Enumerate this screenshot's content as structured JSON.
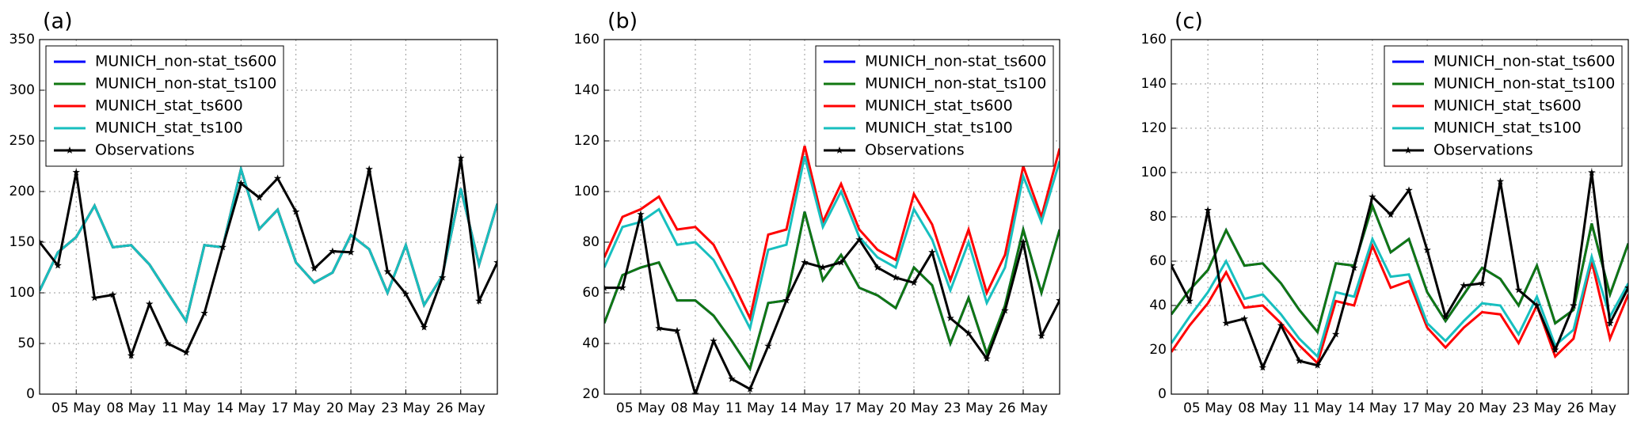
{
  "chart_data": [
    {
      "type": "line",
      "title": "(a)",
      "legend": "upper left",
      "grid": true,
      "x": [
        3,
        4,
        5,
        6,
        7,
        8,
        9,
        10,
        11,
        12,
        13,
        14,
        15,
        16,
        17,
        18,
        19,
        20,
        21,
        22,
        23,
        24,
        25,
        26,
        27,
        28
      ],
      "xlim": [
        3,
        28
      ],
      "xticks": [
        {
          "value": 5,
          "label": "05 May"
        },
        {
          "value": 8,
          "label": "08 May"
        },
        {
          "value": 11,
          "label": "11 May"
        },
        {
          "value": 14,
          "label": "14 May"
        },
        {
          "value": 17,
          "label": "17 May"
        },
        {
          "value": 20,
          "label": "20 May"
        },
        {
          "value": 23,
          "label": "23 May"
        },
        {
          "value": 26,
          "label": "26 May"
        }
      ],
      "ylim": [
        0,
        350
      ],
      "yticks": [
        0,
        50,
        100,
        150,
        200,
        250,
        300,
        350
      ],
      "series": [
        {
          "name": "MUNICH_non-stat_ts600",
          "color": "#0000ff",
          "values": [
            102,
            140,
            155,
            186,
            145,
            147,
            128,
            100,
            72,
            147,
            145,
            222,
            163,
            182,
            130,
            110,
            120,
            157,
            143,
            100,
            147,
            88,
            117,
            203,
            128,
            188
          ]
        },
        {
          "name": "MUNICH_non-stat_ts100",
          "color": "#117711",
          "values": [
            102,
            140,
            155,
            186,
            145,
            147,
            128,
            100,
            72,
            147,
            145,
            222,
            163,
            182,
            130,
            110,
            120,
            157,
            143,
            100,
            147,
            88,
            117,
            203,
            128,
            188
          ]
        },
        {
          "name": "MUNICH_stat_ts600",
          "color": "#ff0000",
          "values": [
            102,
            140,
            155,
            186,
            145,
            147,
            128,
            100,
            72,
            147,
            145,
            222,
            163,
            182,
            130,
            110,
            120,
            157,
            143,
            100,
            147,
            88,
            117,
            203,
            128,
            188
          ]
        },
        {
          "name": "MUNICH_stat_ts100",
          "color": "#17bfbf",
          "values": [
            102,
            140,
            155,
            186,
            145,
            147,
            128,
            100,
            72,
            147,
            145,
            222,
            163,
            182,
            130,
            110,
            120,
            157,
            143,
            100,
            147,
            88,
            117,
            203,
            128,
            188
          ]
        },
        {
          "name": "Observations",
          "color": "#000000",
          "marker": "star",
          "values": [
            150,
            127,
            219,
            95,
            98,
            38,
            89,
            50,
            41,
            80,
            145,
            208,
            194,
            213,
            180,
            124,
            141,
            140,
            222,
            121,
            99,
            66,
            115,
            233,
            92,
            130
          ]
        }
      ]
    },
    {
      "type": "line",
      "title": "(b)",
      "legend": "upper right",
      "grid": true,
      "x": [
        3,
        4,
        5,
        6,
        7,
        8,
        9,
        10,
        11,
        12,
        13,
        14,
        15,
        16,
        17,
        18,
        19,
        20,
        21,
        22,
        23,
        24,
        25,
        26,
        27,
        28
      ],
      "xlim": [
        3,
        28
      ],
      "xticks": [
        {
          "value": 5,
          "label": "05 May"
        },
        {
          "value": 8,
          "label": "08 May"
        },
        {
          "value": 11,
          "label": "11 May"
        },
        {
          "value": 14,
          "label": "14 May"
        },
        {
          "value": 17,
          "label": "17 May"
        },
        {
          "value": 20,
          "label": "20 May"
        },
        {
          "value": 23,
          "label": "23 May"
        },
        {
          "value": 26,
          "label": "26 May"
        }
      ],
      "ylim": [
        20,
        160
      ],
      "yticks": [
        20,
        40,
        60,
        80,
        100,
        120,
        140,
        160
      ],
      "series": [
        {
          "name": "MUNICH_non-stat_ts600",
          "color": "#0000ff",
          "values": [
            48,
            67,
            70,
            72,
            57,
            57,
            51,
            41,
            30,
            56,
            57,
            92,
            65,
            75,
            62,
            59,
            54,
            70,
            63,
            40,
            58,
            36,
            55,
            85,
            60,
            85
          ]
        },
        {
          "name": "MUNICH_non-stat_ts100",
          "color": "#117711",
          "values": [
            48,
            67,
            70,
            72,
            57,
            57,
            51,
            41,
            30,
            56,
            57,
            92,
            65,
            75,
            62,
            59,
            54,
            70,
            63,
            40,
            58,
            36,
            55,
            85,
            60,
            85
          ]
        },
        {
          "name": "MUNICH_stat_ts600",
          "color": "#ff0000",
          "values": [
            74,
            90,
            93,
            98,
            85,
            86,
            79,
            65,
            50,
            83,
            85,
            118,
            88,
            103,
            85,
            77,
            73,
            99,
            87,
            65,
            85,
            60,
            75,
            110,
            90,
            117
          ]
        },
        {
          "name": "MUNICH_stat_ts100",
          "color": "#17bfbf",
          "values": [
            70,
            86,
            88,
            93,
            79,
            80,
            73,
            60,
            46,
            77,
            79,
            114,
            86,
            100,
            82,
            74,
            70,
            93,
            81,
            61,
            80,
            56,
            70,
            106,
            88,
            112
          ]
        },
        {
          "name": "Observations",
          "color": "#000000",
          "marker": "star",
          "values": [
            62,
            62,
            91,
            46,
            45,
            20,
            41,
            26,
            22,
            39,
            57,
            72,
            70,
            72,
            81,
            70,
            66,
            64,
            76,
            50,
            44,
            34,
            53,
            80,
            43,
            57
          ]
        }
      ]
    },
    {
      "type": "line",
      "title": "(c)",
      "legend": "upper right",
      "grid": true,
      "x": [
        3,
        4,
        5,
        6,
        7,
        8,
        9,
        10,
        11,
        12,
        13,
        14,
        15,
        16,
        17,
        18,
        19,
        20,
        21,
        22,
        23,
        24,
        25,
        26,
        27,
        28
      ],
      "xlim": [
        3,
        28
      ],
      "xticks": [
        {
          "value": 5,
          "label": "05 May"
        },
        {
          "value": 8,
          "label": "08 May"
        },
        {
          "value": 11,
          "label": "11 May"
        },
        {
          "value": 14,
          "label": "14 May"
        },
        {
          "value": 17,
          "label": "17 May"
        },
        {
          "value": 20,
          "label": "20 May"
        },
        {
          "value": 23,
          "label": "23 May"
        },
        {
          "value": 26,
          "label": "26 May"
        }
      ],
      "ylim": [
        0,
        160
      ],
      "yticks": [
        0,
        20,
        40,
        60,
        80,
        100,
        120,
        140,
        160
      ],
      "series": [
        {
          "name": "MUNICH_non-stat_ts600",
          "color": "#0000ff",
          "values": [
            36,
            47,
            56,
            74,
            58,
            59,
            50,
            38,
            28,
            59,
            58,
            85,
            64,
            70,
            46,
            33,
            45,
            57,
            52,
            40,
            58,
            32,
            38,
            77,
            45,
            68
          ]
        },
        {
          "name": "MUNICH_non-stat_ts100",
          "color": "#117711",
          "values": [
            36,
            47,
            56,
            74,
            58,
            59,
            50,
            38,
            28,
            59,
            58,
            85,
            64,
            70,
            46,
            33,
            45,
            57,
            52,
            40,
            58,
            32,
            38,
            77,
            45,
            68
          ]
        },
        {
          "name": "MUNICH_stat_ts600",
          "color": "#ff0000",
          "values": [
            19,
            31,
            41,
            55,
            39,
            40,
            32,
            22,
            14,
            42,
            40,
            67,
            48,
            51,
            30,
            21,
            30,
            37,
            36,
            23,
            40,
            17,
            25,
            60,
            25,
            45
          ]
        },
        {
          "name": "MUNICH_stat_ts100",
          "color": "#17bfbf",
          "values": [
            23,
            35,
            46,
            60,
            43,
            45,
            36,
            25,
            17,
            46,
            44,
            70,
            53,
            54,
            32,
            24,
            33,
            41,
            40,
            27,
            44,
            22,
            29,
            62,
            35,
            50
          ]
        },
        {
          "name": "Observations",
          "color": "#000000",
          "marker": "star",
          "values": [
            58,
            42,
            83,
            32,
            34,
            12,
            31,
            15,
            13,
            27,
            57,
            89,
            81,
            92,
            65,
            35,
            49,
            50,
            96,
            47,
            40,
            20,
            40,
            100,
            32,
            48
          ]
        }
      ]
    }
  ]
}
